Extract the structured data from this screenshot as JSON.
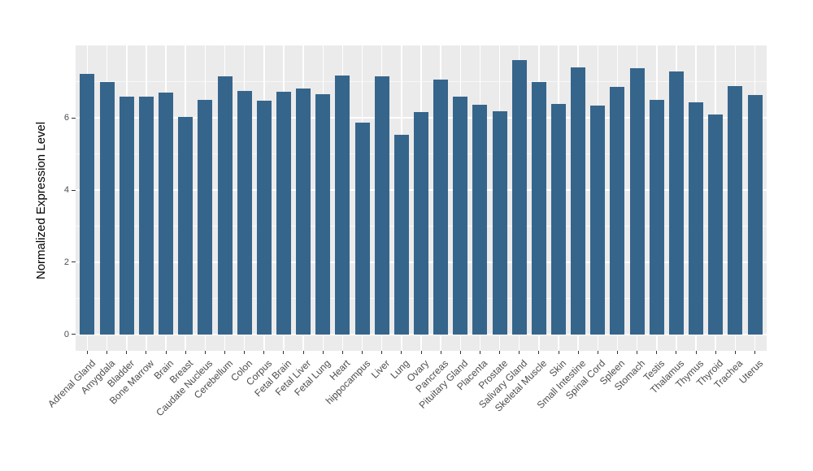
{
  "chart_data": {
    "type": "bar",
    "title": "",
    "xlabel": "",
    "ylabel": "Normalized Expression Level",
    "categories": [
      "Adrenal Gland",
      "Amygdala",
      "Bladder",
      "Bone Marrow",
      "Brain",
      "Breast",
      "Caudate Nucleus",
      "Cerebellum",
      "Colon",
      "Corpus",
      "Fetal Brain",
      "Fetal Liver",
      "Fetal Lung",
      "Heart",
      "hippocampus",
      "Liver",
      "Lung",
      "Ovary",
      "Pancreas",
      "Pituitary Gland",
      "Placenta",
      "Prostate",
      "Salivary Gland",
      "Skeletal Muscle",
      "Skin",
      "Small Intestine",
      "Spinal Cord",
      "Spleen",
      "Stomach",
      "Testis",
      "Thalamus",
      "Thymus",
      "Thyroid",
      "Trachea",
      "Uterus"
    ],
    "values": [
      7.22,
      6.99,
      6.59,
      6.59,
      6.7,
      6.02,
      6.5,
      7.16,
      6.76,
      6.48,
      6.73,
      6.82,
      6.66,
      7.17,
      5.88,
      7.16,
      5.53,
      6.16,
      7.06,
      6.59,
      6.37,
      6.18,
      7.61,
      7.0,
      6.39,
      7.4,
      6.34,
      6.87,
      7.37,
      6.51,
      7.28,
      6.43,
      6.1,
      6.88,
      6.64
    ],
    "yticks": [
      0,
      2,
      4,
      6
    ],
    "ytick_labels": [
      "0",
      "2",
      "4",
      "6"
    ],
    "minor_yticks": [
      1,
      3,
      5,
      7
    ],
    "ylim": [
      -0.45,
      8.0
    ],
    "legend": "none",
    "grid": "white major and minor on gray panel",
    "bar_color": "#36658C",
    "panel_bg": "#EBEBEB",
    "gridline_color": "#FFFFFF",
    "axis_text_color": "#4D4D4D",
    "tick_mark_color": "#333333",
    "axis_title_color": "#000000"
  }
}
